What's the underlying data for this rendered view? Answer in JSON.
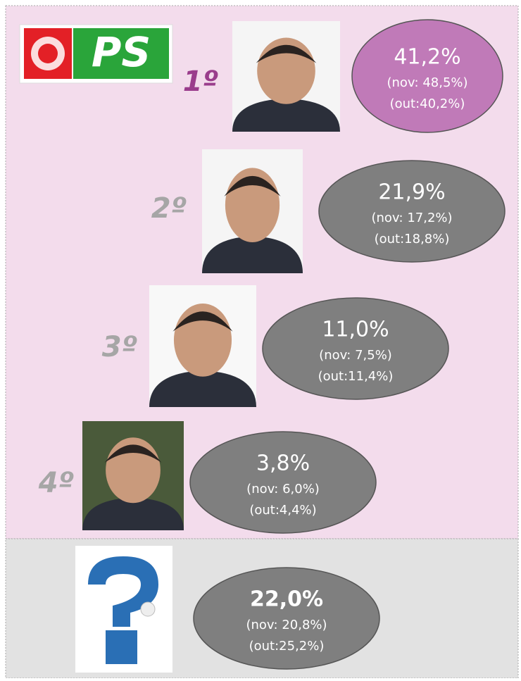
{
  "logo": "PS",
  "entries": [
    {
      "rank": "1º",
      "value": "41,2%",
      "nov": "(nov: 48,5%)",
      "out": "(out:40,2%)"
    },
    {
      "rank": "2º",
      "value": "21,9%",
      "nov": "(nov: 17,2%)",
      "out": "(out:18,8%)"
    },
    {
      "rank": "3º",
      "value": "11,0%",
      "nov": "(nov: 7,5%)",
      "out": "(out:11,4%)"
    },
    {
      "rank": "4º",
      "value": "3,8%",
      "nov": "(nov: 6,0%)",
      "out": "(out:4,4%)"
    }
  ],
  "undecided": {
    "value": "22,0%",
    "nov": "(nov: 20,8%)",
    "out": "(out:25,2%)"
  }
}
